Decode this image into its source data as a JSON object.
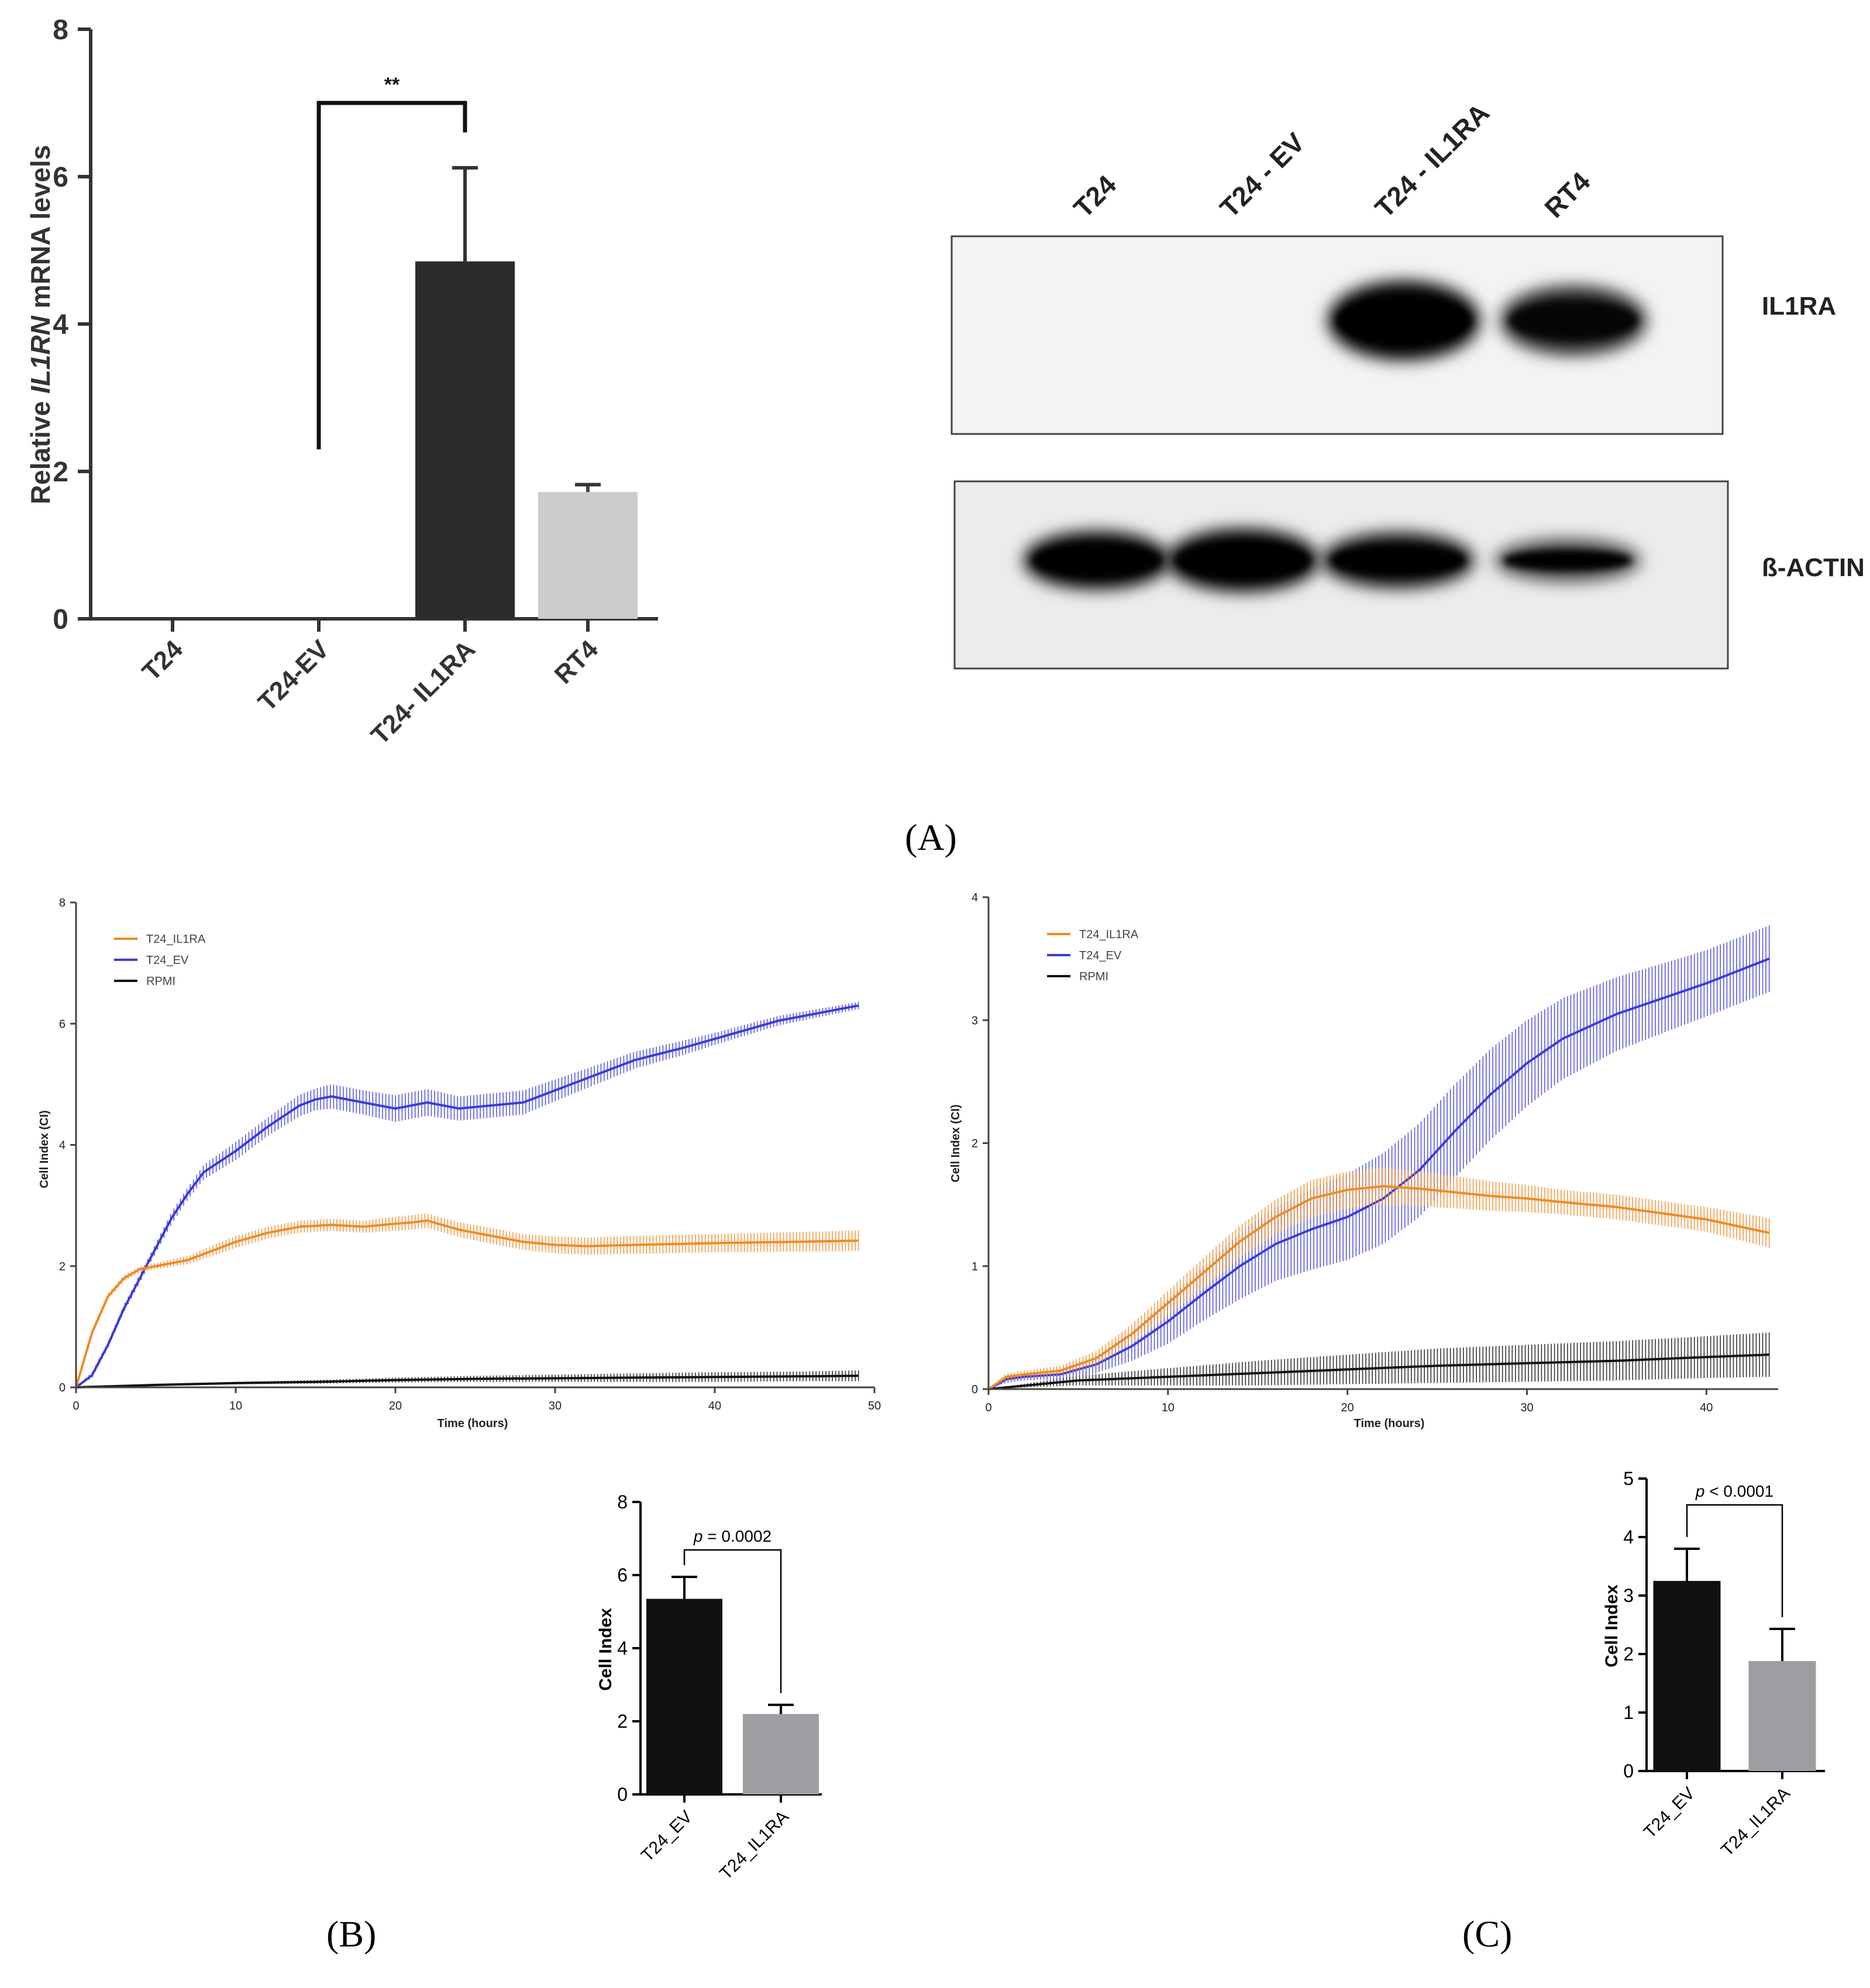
{
  "panel_labels": {
    "a": "(A)",
    "b": "(B)",
    "c": "(C)"
  },
  "colors": {
    "orange": "#f08a24",
    "blue": "#3b3bdc",
    "black": "#111111",
    "dark_bar": "#2b2b2b",
    "light_bar": "#cccccc",
    "gray_bar": "#9d9da2"
  },
  "western_blot": {
    "lanes": [
      "T24",
      "T24 - EV",
      "T24 - IL1RA",
      "RT4"
    ],
    "bands": [
      "IL1RA",
      "ß-ACTIN"
    ],
    "il1ra_intensity": [
      0,
      0,
      1,
      0.85
    ],
    "actin_intensity": [
      0.9,
      1,
      0.85,
      0.6
    ]
  },
  "chart_data": [
    {
      "id": "mrna",
      "type": "bar",
      "title": "",
      "xlabel": "",
      "ylabel_prefix": "Relative ",
      "ylabel_gene": "IL1RN",
      "ylabel_suffix": " mRNA levels",
      "categories": [
        "T24",
        "T24-EV",
        "T24- IL1RA",
        "RT4"
      ],
      "values": [
        0,
        0,
        4.85,
        1.72
      ],
      "errors": [
        0,
        0,
        1.27,
        0.1
      ],
      "ylim": [
        0,
        8
      ],
      "yticks": [
        "0",
        "2",
        "4",
        "6",
        "8"
      ],
      "significance": {
        "from": 1,
        "to": 2,
        "label": "**"
      }
    },
    {
      "id": "ci_b",
      "type": "line",
      "xlabel": "Time (hours)",
      "ylabel": "Cell Index (CI)",
      "xlim": [
        0,
        50
      ],
      "ylim": [
        0,
        8
      ],
      "xticks": [
        "0",
        "10",
        "20",
        "30",
        "40",
        "50"
      ],
      "yticks": [
        "0",
        "2",
        "4",
        "6",
        "8"
      ],
      "legend": [
        "T24_IL1RA",
        "T24_EV",
        "RPMI"
      ],
      "series": [
        {
          "name": "T24_IL1RA",
          "x": [
            0,
            1,
            2,
            3,
            4,
            5,
            6,
            7,
            8,
            10,
            12,
            14,
            16,
            18,
            20,
            21,
            22,
            24,
            26,
            28,
            30,
            32,
            35,
            40,
            45,
            49
          ],
          "y": [
            0,
            0.9,
            1.5,
            1.8,
            1.95,
            2.0,
            2.05,
            2.1,
            2.2,
            2.4,
            2.55,
            2.65,
            2.68,
            2.65,
            2.7,
            2.72,
            2.75,
            2.6,
            2.5,
            2.4,
            2.35,
            2.33,
            2.35,
            2.38,
            2.4,
            2.42
          ],
          "err": [
            0,
            0.05,
            0.05,
            0.05,
            0.05,
            0.05,
            0.06,
            0.07,
            0.08,
            0.1,
            0.1,
            0.1,
            0.1,
            0.1,
            0.12,
            0.12,
            0.12,
            0.12,
            0.13,
            0.13,
            0.14,
            0.14,
            0.15,
            0.15,
            0.16,
            0.17
          ]
        },
        {
          "name": "T24_EV",
          "x": [
            0,
            1,
            2,
            3,
            4,
            5,
            6,
            7,
            8,
            10,
            12,
            14,
            15,
            16,
            18,
            20,
            22,
            24,
            26,
            28,
            30,
            32,
            35,
            38,
            40,
            44,
            49
          ],
          "y": [
            0,
            0.2,
            0.7,
            1.3,
            1.8,
            2.3,
            2.8,
            3.2,
            3.55,
            3.9,
            4.3,
            4.65,
            4.75,
            4.8,
            4.7,
            4.6,
            4.7,
            4.6,
            4.65,
            4.7,
            4.9,
            5.1,
            5.4,
            5.6,
            5.75,
            6.05,
            6.3
          ],
          "err": [
            0,
            0.05,
            0.05,
            0.06,
            0.07,
            0.08,
            0.1,
            0.1,
            0.12,
            0.15,
            0.15,
            0.18,
            0.18,
            0.2,
            0.2,
            0.22,
            0.22,
            0.2,
            0.2,
            0.2,
            0.18,
            0.16,
            0.14,
            0.12,
            0.1,
            0.08,
            0.06
          ]
        },
        {
          "name": "RPMI",
          "x": [
            0,
            5,
            10,
            15,
            20,
            25,
            30,
            35,
            40,
            45,
            49
          ],
          "y": [
            0,
            0.04,
            0.07,
            0.09,
            0.12,
            0.14,
            0.15,
            0.16,
            0.17,
            0.18,
            0.19
          ],
          "err": [
            0,
            0.01,
            0.02,
            0.03,
            0.04,
            0.05,
            0.06,
            0.07,
            0.08,
            0.08,
            0.09
          ]
        }
      ]
    },
    {
      "id": "ci_c",
      "type": "line",
      "xlabel": "Time (hours)",
      "ylabel": "Cell Index (CI)",
      "xlim": [
        0,
        44
      ],
      "ylim": [
        0,
        4
      ],
      "xticks": [
        "0",
        "10",
        "20",
        "30",
        "40"
      ],
      "yticks": [
        "0",
        "1",
        "2",
        "3",
        "4"
      ],
      "legend": [
        "T24_IL1RA",
        "T24_EV",
        "RPMI"
      ],
      "series": [
        {
          "name": "T24_IL1RA",
          "x": [
            0,
            1,
            2,
            4,
            6,
            8,
            10,
            12,
            14,
            16,
            18,
            20,
            22,
            24,
            26,
            28,
            30,
            32,
            35,
            38,
            40,
            43.5
          ],
          "y": [
            0,
            0.1,
            0.12,
            0.15,
            0.25,
            0.45,
            0.7,
            0.95,
            1.2,
            1.4,
            1.55,
            1.62,
            1.65,
            1.63,
            1.6,
            1.57,
            1.55,
            1.52,
            1.48,
            1.42,
            1.38,
            1.27
          ],
          "err": [
            0,
            0.03,
            0.03,
            0.04,
            0.06,
            0.08,
            0.1,
            0.12,
            0.13,
            0.14,
            0.15,
            0.15,
            0.15,
            0.14,
            0.13,
            0.12,
            0.11,
            0.1,
            0.1,
            0.1,
            0.1,
            0.12
          ]
        },
        {
          "name": "T24_EV",
          "x": [
            0,
            1,
            2,
            4,
            6,
            8,
            10,
            12,
            14,
            16,
            18,
            20,
            22,
            24,
            26,
            28,
            30,
            32,
            35,
            38,
            40,
            43.5
          ],
          "y": [
            0,
            0.08,
            0.1,
            0.12,
            0.2,
            0.35,
            0.55,
            0.78,
            1.0,
            1.18,
            1.3,
            1.4,
            1.55,
            1.78,
            2.1,
            2.4,
            2.65,
            2.85,
            3.05,
            3.2,
            3.3,
            3.5
          ],
          "err": [
            0,
            0.03,
            0.03,
            0.04,
            0.07,
            0.12,
            0.18,
            0.22,
            0.27,
            0.3,
            0.33,
            0.35,
            0.37,
            0.38,
            0.38,
            0.37,
            0.35,
            0.33,
            0.3,
            0.28,
            0.27,
            0.27
          ]
        },
        {
          "name": "RPMI",
          "x": [
            0,
            5,
            10,
            15,
            20,
            25,
            30,
            35,
            40,
            43.5
          ],
          "y": [
            0,
            0.07,
            0.1,
            0.13,
            0.16,
            0.19,
            0.21,
            0.23,
            0.26,
            0.28
          ],
          "err": [
            0,
            0.04,
            0.07,
            0.1,
            0.12,
            0.14,
            0.15,
            0.16,
            0.17,
            0.18
          ]
        }
      ]
    },
    {
      "id": "ci_bar_b",
      "type": "bar",
      "ylabel": "Cell Index",
      "categories": [
        "T24_EV",
        "T24_IL1RA"
      ],
      "values": [
        5.35,
        2.2
      ],
      "errors": [
        0.6,
        0.25
      ],
      "ylim": [
        0,
        8
      ],
      "yticks": [
        "0",
        "2",
        "4",
        "6",
        "8"
      ],
      "pvalue": {
        "p": "p",
        "rest": " = 0.0002"
      }
    },
    {
      "id": "ci_bar_c",
      "type": "bar",
      "ylabel": "Cell Index",
      "categories": [
        "T24_EV",
        "T24_IL1RA"
      ],
      "values": [
        3.25,
        1.88
      ],
      "errors": [
        0.55,
        0.55
      ],
      "ylim": [
        0,
        5
      ],
      "yticks": [
        "0",
        "1",
        "2",
        "3",
        "4",
        "5"
      ],
      "pvalue": {
        "p": "p",
        "rest": " < 0.0001"
      }
    }
  ]
}
